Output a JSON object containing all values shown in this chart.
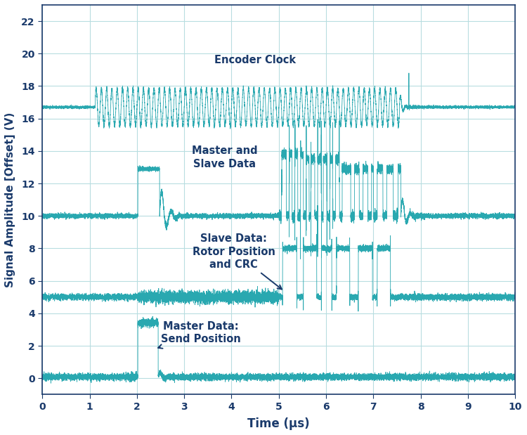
{
  "xlabel": "Time (μs)",
  "ylabel": "Signal Amplitude [Offset] (V)",
  "xlim": [
    0,
    10
  ],
  "ylim": [
    -1,
    23
  ],
  "xticks": [
    0,
    1,
    2,
    3,
    4,
    5,
    6,
    7,
    8,
    9,
    10
  ],
  "yticks": [
    0,
    2,
    4,
    6,
    8,
    10,
    12,
    14,
    16,
    18,
    20,
    22
  ],
  "signal_color": "#29a8b0",
  "bg_color": "#ffffff",
  "grid_color": "#b8dde0",
  "label_color": "#1a3a6b",
  "axis_color": "#1a3a6b",
  "clock_baseline": 16.7,
  "clock_amplitude": 1.15,
  "clock_freq": 9.0,
  "ms_baseline": 10.0,
  "sd_baseline": 5.0,
  "md_baseline": 0.08,
  "figsize": [
    7.5,
    6.19
  ],
  "dpi": 100
}
